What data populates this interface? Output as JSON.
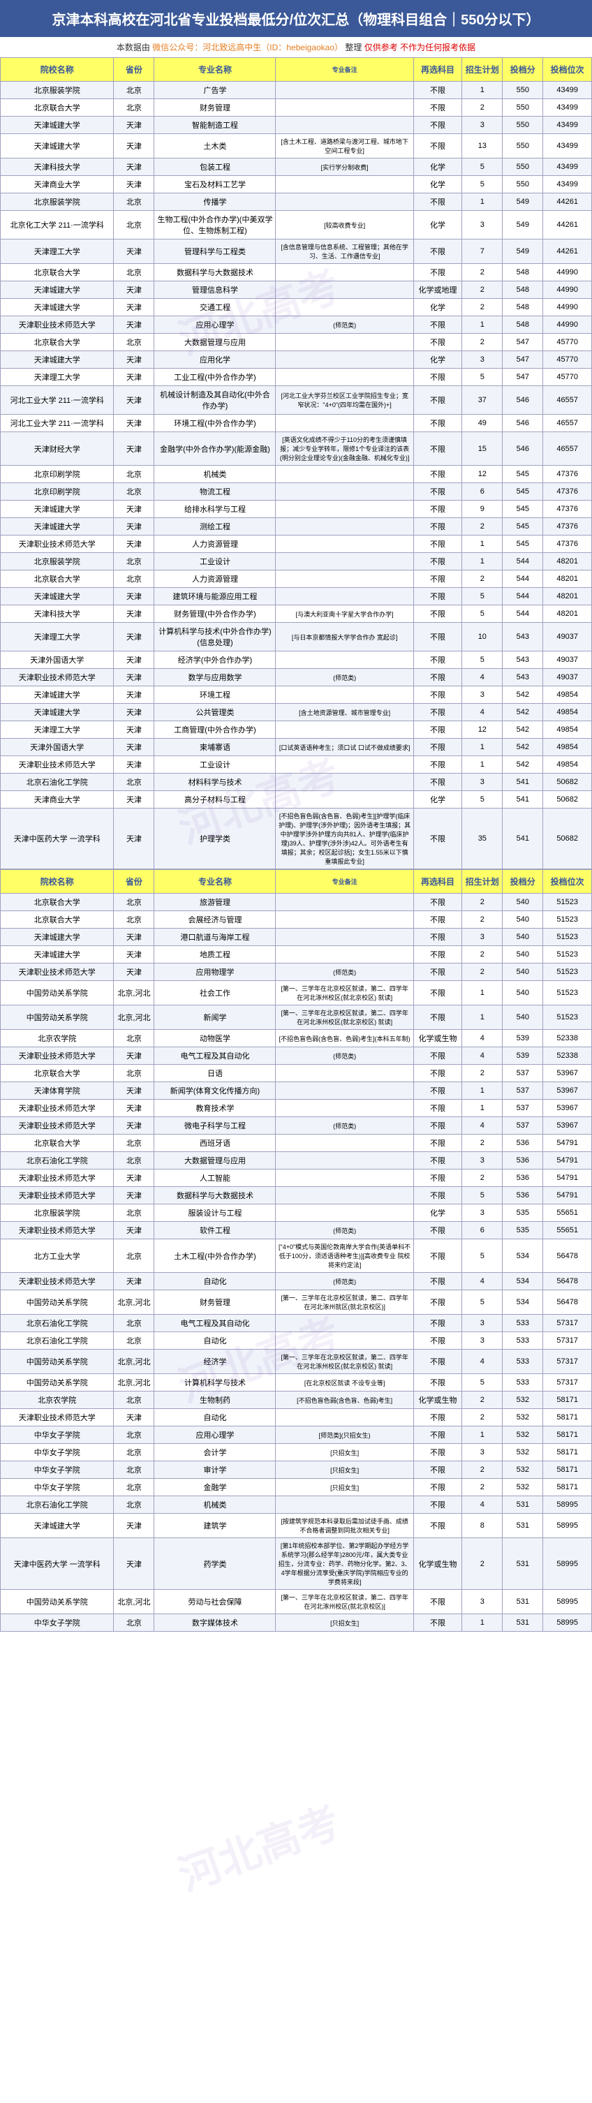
{
  "header_title": "京津本科高校在河北省专业投档最低分/位次汇总（物理科目组合｜550分以下）",
  "subheader_prefix": "本数据由",
  "subheader_source": "微信公众号：河北致远高中生（ID：hebeigaokao）",
  "subheader_mid": "整理",
  "subheader_warn": "仅供参考 不作为任何报考依据",
  "columns": [
    "院校名称",
    "省份",
    "专业名称",
    "专业备注",
    "再选科目",
    "招生计划",
    "投档分",
    "投档位次"
  ],
  "watermarks": [
    "河北高考",
    "河北高考",
    "河北高考",
    "河北高考"
  ],
  "rows": [
    [
      "北京服装学院",
      "北京",
      "广告学",
      "",
      "不限",
      "1",
      "550",
      "43499"
    ],
    [
      "北京联合大学",
      "北京",
      "财务管理",
      "",
      "不限",
      "2",
      "550",
      "43499"
    ],
    [
      "天津城建大学",
      "天津",
      "智能制造工程",
      "",
      "不限",
      "3",
      "550",
      "43499"
    ],
    [
      "天津城建大学",
      "天津",
      "土木类",
      "[含土木工程、道路桥梁与渡河工程、城市地下空间工程专业]",
      "不限",
      "13",
      "550",
      "43499"
    ],
    [
      "天津科技大学",
      "天津",
      "包装工程",
      "[实行学分制收费]",
      "化学",
      "5",
      "550",
      "43499"
    ],
    [
      "天津商业大学",
      "天津",
      "宝石及材料工艺学",
      "",
      "化学",
      "5",
      "550",
      "43499"
    ],
    [
      "北京服装学院",
      "北京",
      "传播学",
      "",
      "不限",
      "1",
      "549",
      "44261"
    ],
    [
      "北京化工大学 211·一流学科",
      "北京",
      "生物工程(中外合作办学)(中美双学位、生物炼制工程)",
      "[较高收费专业]",
      "化学",
      "3",
      "549",
      "44261"
    ],
    [
      "天津理工大学",
      "天津",
      "管理科学与工程类",
      "[含信息管理与信息系统、工程管理；其他在学习、生活、工作遇信专业]",
      "不限",
      "7",
      "549",
      "44261"
    ],
    [
      "北京联合大学",
      "北京",
      "数据科学与大数据技术",
      "",
      "不限",
      "2",
      "548",
      "44990"
    ],
    [
      "天津城建大学",
      "天津",
      "管理信息科学",
      "",
      "化学或地理",
      "2",
      "548",
      "44990"
    ],
    [
      "天津城建大学",
      "天津",
      "交通工程",
      "",
      "化学",
      "2",
      "548",
      "44990"
    ],
    [
      "天津职业技术师范大学",
      "天津",
      "应用心理学",
      "(师范类)",
      "不限",
      "1",
      "548",
      "44990"
    ],
    [
      "北京联合大学",
      "北京",
      "大数据管理与应用",
      "",
      "不限",
      "2",
      "547",
      "45770"
    ],
    [
      "天津城建大学",
      "天津",
      "应用化学",
      "",
      "化学",
      "3",
      "547",
      "45770"
    ],
    [
      "天津理工大学",
      "天津",
      "工业工程(中外合作办学)",
      "",
      "不限",
      "5",
      "547",
      "45770"
    ],
    [
      "河北工业大学 211·一流学科",
      "天津",
      "机械设计制造及其自动化(中外合作办学)",
      "[河北工业大学芬兰校区工业学院招生专业；宽窄状况：\"4+0\"(四年均需在国外)+]",
      "不限",
      "37",
      "546",
      "46557"
    ],
    [
      "河北工业大学 211·一流学科",
      "天津",
      "环境工程(中外合作办学)",
      "",
      "不限",
      "49",
      "546",
      "46557"
    ],
    [
      "天津财经大学",
      "天津",
      "金融学(中外合作办学)(能源金融)",
      "[英语文化成绩不得少于110分的考生须谨慎填报；减少专业学转年，限修1个专业译注的该表(明分别企业理论专业)(金融金融、机械化专业)]",
      "不限",
      "15",
      "546",
      "46557"
    ],
    [
      "北京印刷学院",
      "北京",
      "机械类",
      "",
      "不限",
      "12",
      "545",
      "47376"
    ],
    [
      "北京印刷学院",
      "北京",
      "物流工程",
      "",
      "不限",
      "6",
      "545",
      "47376"
    ],
    [
      "天津城建大学",
      "天津",
      "给排水科学与工程",
      "",
      "不限",
      "9",
      "545",
      "47376"
    ],
    [
      "天津城建大学",
      "天津",
      "测绘工程",
      "",
      "不限",
      "2",
      "545",
      "47376"
    ],
    [
      "天津职业技术师范大学",
      "天津",
      "人力资源管理",
      "",
      "不限",
      "1",
      "545",
      "47376"
    ],
    [
      "北京服装学院",
      "北京",
      "工业设计",
      "",
      "不限",
      "1",
      "544",
      "48201"
    ],
    [
      "北京联合大学",
      "北京",
      "人力资源管理",
      "",
      "不限",
      "2",
      "544",
      "48201"
    ],
    [
      "天津城建大学",
      "天津",
      "建筑环境与能源应用工程",
      "",
      "不限",
      "5",
      "544",
      "48201"
    ],
    [
      "天津科技大学",
      "天津",
      "财务管理(中外合作办学)",
      "[与澳大利亚南十字星大学合作办学]",
      "不限",
      "5",
      "544",
      "48201"
    ],
    [
      "天津理工大学",
      "天津",
      "计算机科学与技术(中外合作办学)(信息处理)",
      "[与日本京都情报大学学合作办 宽起诊]",
      "不限",
      "10",
      "543",
      "49037"
    ],
    [
      "天津外国语大学",
      "天津",
      "经济学(中外合作办学)",
      "",
      "不限",
      "5",
      "543",
      "49037"
    ],
    [
      "天津职业技术师范大学",
      "天津",
      "数学与应用数学",
      "(师范类)",
      "不限",
      "4",
      "543",
      "49037"
    ],
    [
      "天津城建大学",
      "天津",
      "环境工程",
      "",
      "不限",
      "3",
      "542",
      "49854"
    ],
    [
      "天津城建大学",
      "天津",
      "公共管理类",
      "[含土地资源管理、城市管理专业]",
      "不限",
      "4",
      "542",
      "49854"
    ],
    [
      "天津理工大学",
      "天津",
      "工商管理(中外合作办学)",
      "",
      "不限",
      "12",
      "542",
      "49854"
    ],
    [
      "天津外国语大学",
      "天津",
      "柬埔寨语",
      "[口试英语语种考生；须口试 口试不做成绩要求]",
      "不限",
      "1",
      "542",
      "49854"
    ],
    [
      "天津职业技术师范大学",
      "天津",
      "工业设计",
      "",
      "不限",
      "1",
      "542",
      "49854"
    ],
    [
      "北京石油化工学院",
      "北京",
      "材料科学与技术",
      "",
      "不限",
      "3",
      "541",
      "50682"
    ],
    [
      "天津商业大学",
      "天津",
      "高分子材料与工程",
      "",
      "化学",
      "5",
      "541",
      "50682"
    ],
    [
      "天津中医药大学 一流学科",
      "天津",
      "护理学类",
      "[不招色盲色弱(含色盲、色弱)考生][护理学(临床护理)、护理学(涉外护理)；因外语考生填报；其中护理学涉外护理方向共81人、护理学(临床护理)39人、护理学(涉外涉)42人。可外语考生有填报；其余；校区起诊括]；女生1.55米以下慎重填报此专业]",
      "不限",
      "35",
      "541",
      "50682"
    ]
  ],
  "rows2": [
    [
      "北京联合大学",
      "北京",
      "旅游管理",
      "",
      "不限",
      "2",
      "540",
      "51523"
    ],
    [
      "北京联合大学",
      "北京",
      "会展经济与管理",
      "",
      "不限",
      "2",
      "540",
      "51523"
    ],
    [
      "天津城建大学",
      "天津",
      "港口航道与海岸工程",
      "",
      "不限",
      "3",
      "540",
      "51523"
    ],
    [
      "天津城建大学",
      "天津",
      "地质工程",
      "",
      "不限",
      "2",
      "540",
      "51523"
    ],
    [
      "天津职业技术师范大学",
      "天津",
      "应用物理学",
      "(师范类)",
      "不限",
      "2",
      "540",
      "51523"
    ],
    [
      "中国劳动关系学院",
      "北京,河北",
      "社会工作",
      "[第一、三学年在北京校区就读，第二、四学年在河北涿州校区(就北京校区) 就读]",
      "不限",
      "1",
      "540",
      "51523"
    ],
    [
      "中国劳动关系学院",
      "北京,河北",
      "新闻学",
      "[第一、三学年在北京校区就读，第二、四学年在河北涿州校区(就北京校区) 就读]",
      "不限",
      "1",
      "540",
      "51523"
    ],
    [
      "北京农学院",
      "北京",
      "动物医学",
      "[不招色盲色弱(含色盲、色弱)考生](本科五年制)",
      "化学或生物",
      "4",
      "539",
      "52338"
    ],
    [
      "天津职业技术师范大学",
      "天津",
      "电气工程及其自动化",
      "(师范类)",
      "不限",
      "4",
      "539",
      "52338"
    ],
    [
      "北京联合大学",
      "北京",
      "日语",
      "",
      "不限",
      "2",
      "537",
      "53967"
    ],
    [
      "天津体育学院",
      "天津",
      "新闻学(体育文化传播方向)",
      "",
      "不限",
      "1",
      "537",
      "53967"
    ],
    [
      "天津职业技术师范大学",
      "天津",
      "教育技术学",
      "",
      "不限",
      "1",
      "537",
      "53967"
    ],
    [
      "天津职业技术师范大学",
      "天津",
      "微电子科学与工程",
      "(师范类)",
      "不限",
      "4",
      "537",
      "53967"
    ],
    [
      "北京联合大学",
      "北京",
      "西班牙语",
      "",
      "不限",
      "2",
      "536",
      "54791"
    ],
    [
      "北京石油化工学院",
      "北京",
      "大数据管理与应用",
      "",
      "不限",
      "3",
      "536",
      "54791"
    ],
    [
      "天津职业技术师范大学",
      "天津",
      "人工智能",
      "",
      "不限",
      "2",
      "536",
      "54791"
    ],
    [
      "天津职业技术师范大学",
      "天津",
      "数据科学与大数据技术",
      "",
      "不限",
      "5",
      "536",
      "54791"
    ],
    [
      "北京服装学院",
      "北京",
      "服装设计与工程",
      "",
      "化学",
      "3",
      "535",
      "55651"
    ],
    [
      "天津职业技术师范大学",
      "天津",
      "软件工程",
      "(师范类)",
      "不限",
      "6",
      "535",
      "55651"
    ],
    [
      "北方工业大学",
      "北京",
      "土木工程(中外合作办学)",
      "[\"4+0\"模式与英国伦敦南岸大学合作(英语单科不低于100分，须适语语种考生)][高收费专业 院校将来约定法]",
      "不限",
      "5",
      "534",
      "56478"
    ],
    [
      "天津职业技术师范大学",
      "天津",
      "自动化",
      "(师范类)",
      "不限",
      "4",
      "534",
      "56478"
    ],
    [
      "中国劳动关系学院",
      "北京,河北",
      "财务管理",
      "[第一、三学年在北京校区就读，第二、四学年在河北涿州就区(就北京校区)]",
      "不限",
      "5",
      "534",
      "56478"
    ],
    [
      "北京石油化工学院",
      "北京",
      "电气工程及其自动化",
      "",
      "不限",
      "3",
      "533",
      "57317"
    ],
    [
      "北京石油化工学院",
      "北京",
      "自动化",
      "",
      "不限",
      "3",
      "533",
      "57317"
    ],
    [
      "中国劳动关系学院",
      "北京,河北",
      "经济学",
      "[第一、三学年在北京校区就读，第二、四学年在河北涿州校区(就北京校区) 就读]",
      "不限",
      "4",
      "533",
      "57317"
    ],
    [
      "中国劳动关系学院",
      "北京,河北",
      "计算机科学与技术",
      "[在北京校区就读 不设专业等]",
      "不限",
      "5",
      "533",
      "57317"
    ],
    [
      "北京农学院",
      "北京",
      "生物制药",
      "[不招色盲色弱(含色盲、色弱)考生]",
      "化学或生物",
      "2",
      "532",
      "58171"
    ],
    [
      "天津职业技术师范大学",
      "天津",
      "自动化",
      "",
      "不限",
      "2",
      "532",
      "58171"
    ],
    [
      "中华女子学院",
      "北京",
      "应用心理学",
      "[师范类](只招女生)",
      "不限",
      "1",
      "532",
      "58171"
    ],
    [
      "中华女子学院",
      "北京",
      "会计学",
      "[只招女生]",
      "不限",
      "3",
      "532",
      "58171"
    ],
    [
      "中华女子学院",
      "北京",
      "审计学",
      "[只招女生]",
      "不限",
      "2",
      "532",
      "58171"
    ],
    [
      "中华女子学院",
      "北京",
      "金融学",
      "[只招女生]",
      "不限",
      "2",
      "532",
      "58171"
    ],
    [
      "北京石油化工学院",
      "北京",
      "机械类",
      "",
      "不限",
      "4",
      "531",
      "58995"
    ],
    [
      "天津城建大学",
      "天津",
      "建筑学",
      "[按建筑学规范本科录取后需加试徒手画、成绩不合格者调整到同批次相关专业]",
      "不限",
      "8",
      "531",
      "58995"
    ],
    [
      "天津中医药大学 一流学科",
      "天津",
      "药学类",
      "[第1年统招校本部学位、第2学期起办学经方学系统学习(那么经学年)2800元/年，属大类专业招生，分流专业：药学、药物分化学。第2、3、4学年根据分流享受(重庆学院)学院相应专业的学费将来段]",
      "化学或生物",
      "2",
      "531",
      "58995"
    ],
    [
      "中国劳动关系学院",
      "北京,河北",
      "劳动与社会保障",
      "[第一、三学年在北京校区就读，第二、四学年在河北涿州校区(就北京校区)]",
      "不限",
      "3",
      "531",
      "58995"
    ],
    [
      "中华女子学院",
      "北京",
      "数字媒体技术",
      "[只招女生]",
      "不限",
      "1",
      "531",
      "58995"
    ]
  ]
}
